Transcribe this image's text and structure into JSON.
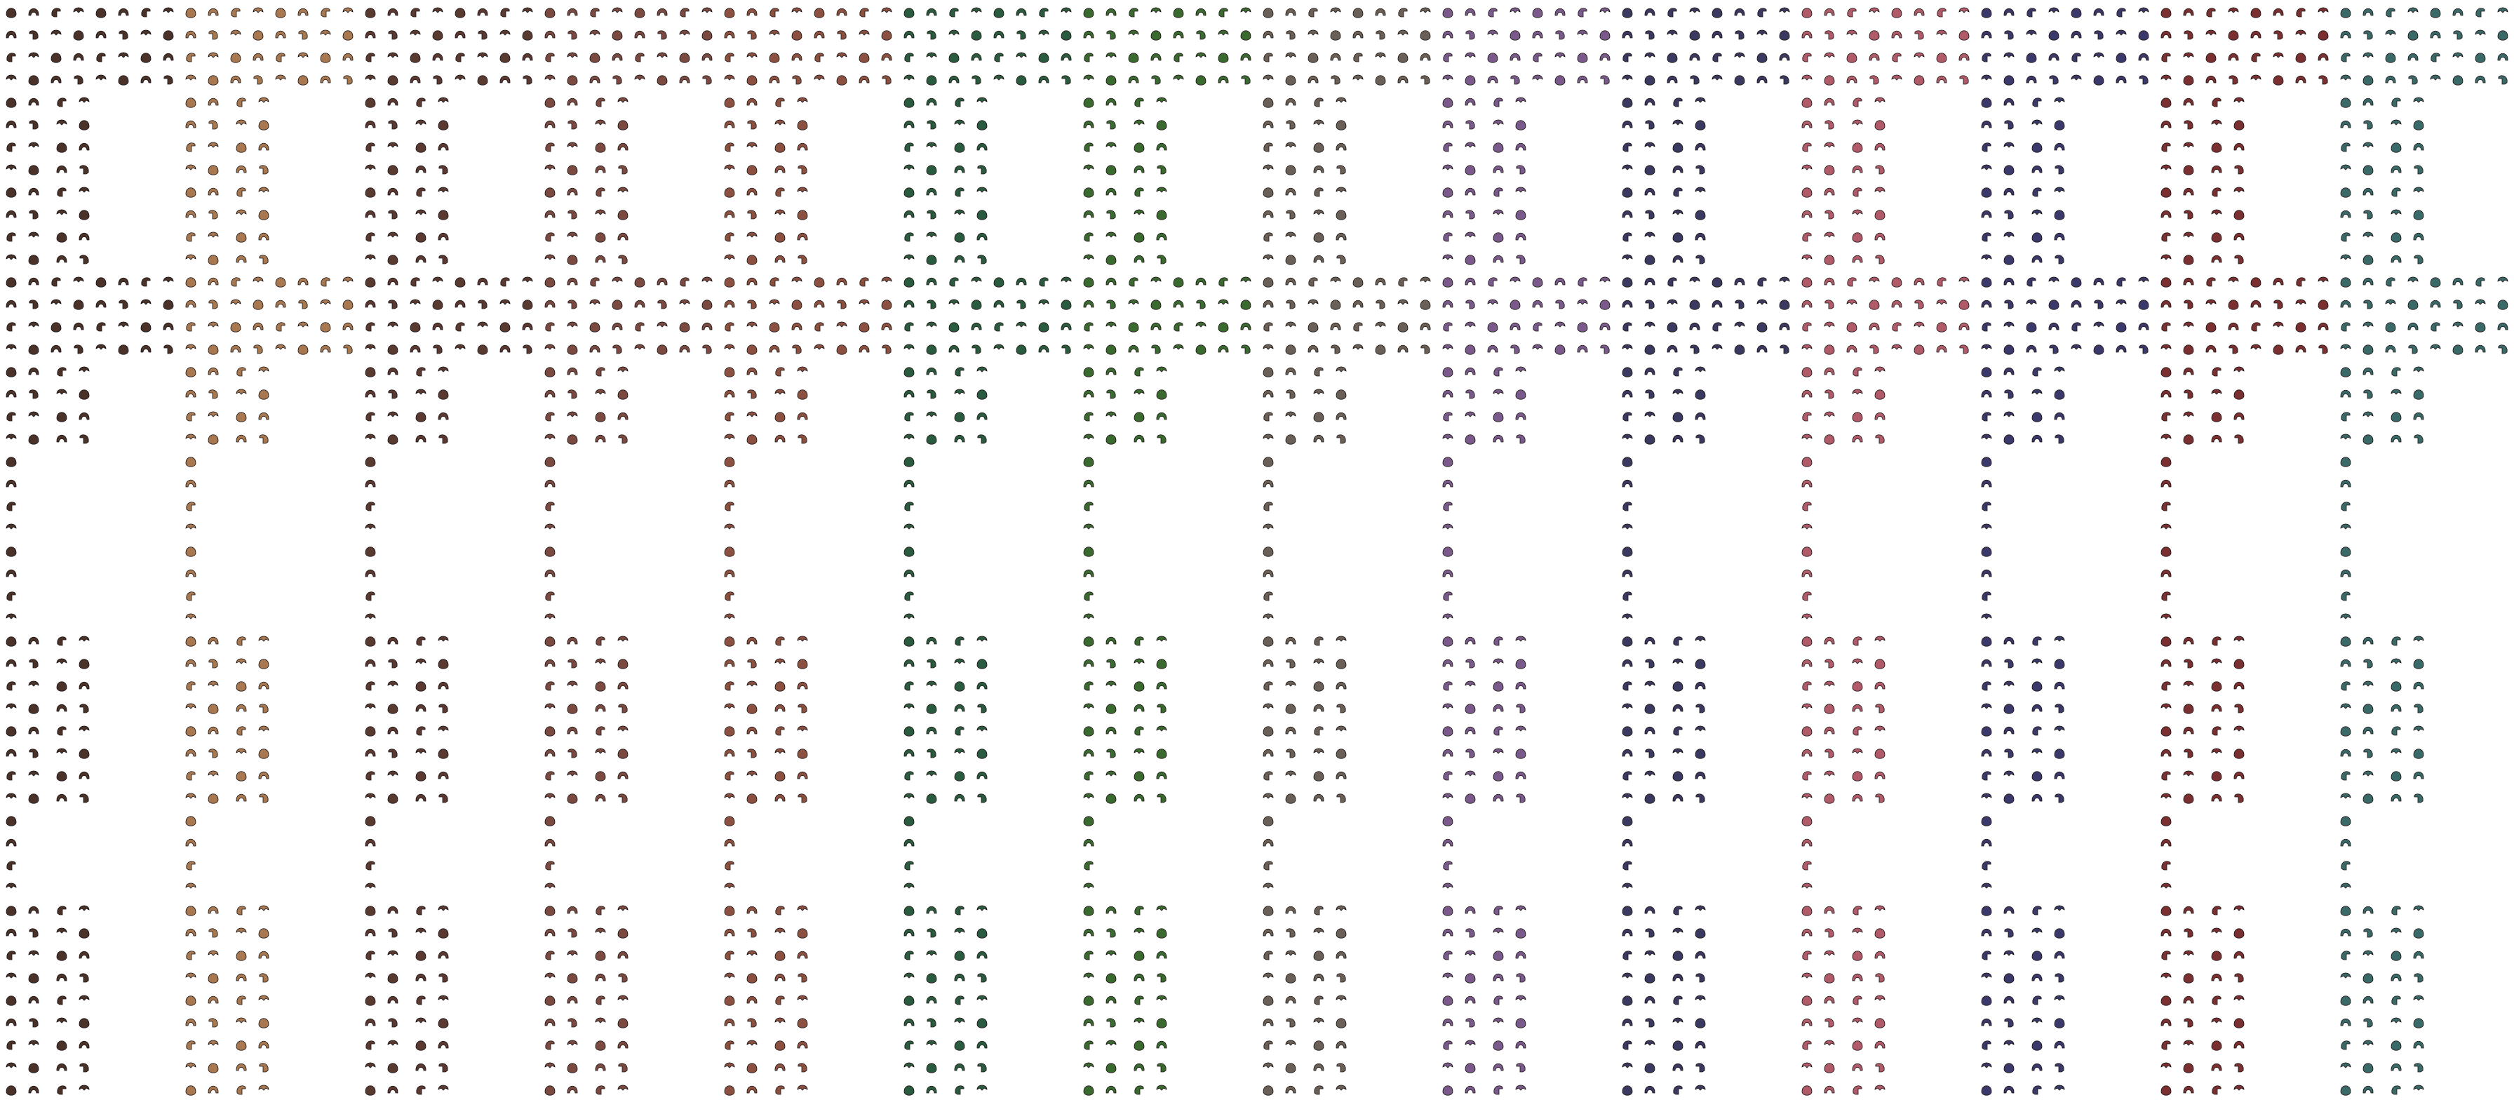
{
  "palette": [
    "#4a3228",
    "#a87850",
    "#5a3a30",
    "#7a4a40",
    "#8c5040",
    "#2a5a40",
    "#3a6a30",
    "#6a6058",
    "#7a5a8a",
    "#3a3a60",
    "#b05a6a",
    "#3a3a6a",
    "#7a3030",
    "#3a6a68"
  ]
}
